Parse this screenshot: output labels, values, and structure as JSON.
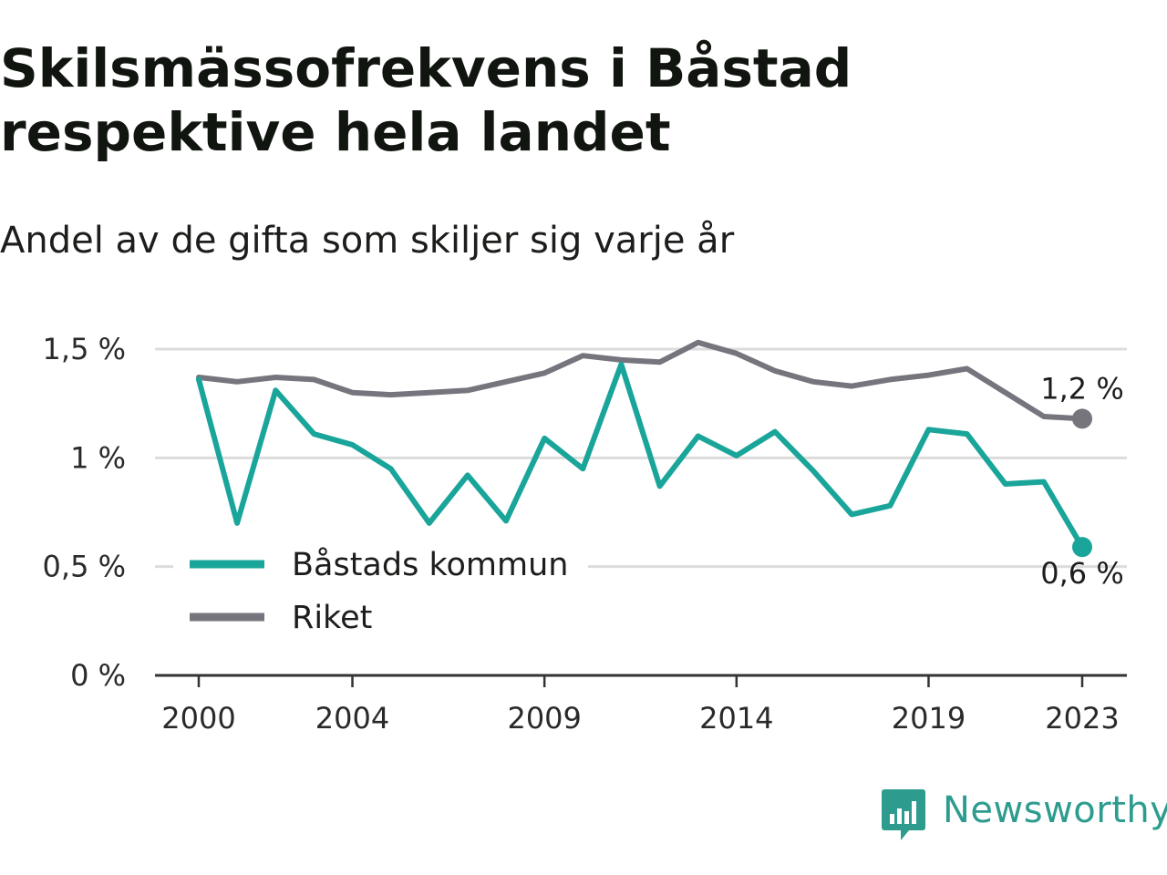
{
  "header": {
    "title": "Skilsmässofrekvens i Båstad respektive hela landet",
    "subtitle": "Andel av de gifta som skiljer sig varje år"
  },
  "chart_data": {
    "type": "line",
    "x": [
      2000,
      2001,
      2002,
      2003,
      2004,
      2005,
      2006,
      2007,
      2008,
      2009,
      2010,
      2011,
      2012,
      2013,
      2014,
      2015,
      2016,
      2017,
      2018,
      2019,
      2020,
      2021,
      2022,
      2023
    ],
    "series": [
      {
        "name": "Båstads kommun",
        "color": "#1aa59a",
        "values": [
          1.36,
          0.7,
          1.31,
          1.11,
          1.06,
          0.95,
          0.7,
          0.92,
          0.71,
          1.09,
          0.95,
          1.43,
          0.87,
          1.1,
          1.01,
          1.12,
          0.94,
          0.74,
          0.78,
          1.13,
          1.11,
          0.88,
          0.89,
          0.59
        ]
      },
      {
        "name": "Riket",
        "color": "#76757d",
        "values": [
          1.37,
          1.35,
          1.37,
          1.36,
          1.3,
          1.29,
          1.3,
          1.31,
          1.35,
          1.39,
          1.47,
          1.45,
          1.44,
          1.53,
          1.48,
          1.4,
          1.35,
          1.33,
          1.36,
          1.38,
          1.41,
          1.3,
          1.19,
          1.18
        ]
      }
    ],
    "y_ticks": [
      {
        "value": 0,
        "label": "0 %"
      },
      {
        "value": 0.5,
        "label": "0,5 %"
      },
      {
        "value": 1,
        "label": "1 %"
      },
      {
        "value": 1.5,
        "label": "1,5 %"
      }
    ],
    "x_ticks": [
      {
        "value": 2000,
        "label": "2000"
      },
      {
        "value": 2004,
        "label": "2004"
      },
      {
        "value": 2009,
        "label": "2009"
      },
      {
        "value": 2014,
        "label": "2014"
      },
      {
        "value": 2019,
        "label": "2019"
      },
      {
        "value": 2023,
        "label": "2023"
      }
    ],
    "end_labels": [
      {
        "series": "Riket",
        "text": "1,2 %"
      },
      {
        "series": "Båstads kommun",
        "text": "0,6 %"
      }
    ],
    "ylim": [
      0,
      1.5
    ],
    "xlim": [
      2000,
      2023
    ],
    "grid": true,
    "legend_position": "bottom-left"
  },
  "logo": {
    "text": "Newsworthy",
    "color": "#2d9c8e"
  }
}
